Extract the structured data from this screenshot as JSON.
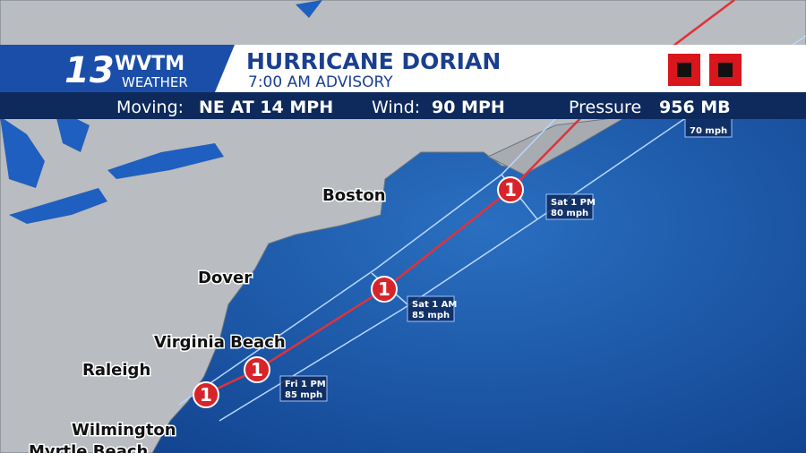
{
  "header": {
    "logo_number": "13",
    "logo_station": "WVTM",
    "logo_weather": "WEATHER",
    "title": "HURRICANE DORIAN",
    "subtitle": "7:00 AM ADVISORY"
  },
  "info_bar": {
    "moving_label": "Moving:",
    "moving_value": "NE AT 14 MPH",
    "wind_label": "Wind:",
    "wind_value": "90 MPH",
    "pressure_label": "Pressure",
    "pressure_value": "956 MB"
  },
  "cities": [
    {
      "label": "Boston"
    },
    {
      "label": "Dover"
    },
    {
      "label": "Virginia Beach"
    },
    {
      "label": "Raleigh"
    },
    {
      "label": "Wilmington"
    },
    {
      "label": "Myrtle Beach"
    }
  ],
  "track_points": [
    {
      "category": "1"
    },
    {
      "category": "1"
    },
    {
      "category": "1"
    },
    {
      "category": "1"
    }
  ],
  "forecast_labels": [
    {
      "time": "Fri 1 PM",
      "wind": "85 mph"
    },
    {
      "time": "Sat 1 AM",
      "wind": "85 mph"
    },
    {
      "time": "Sat 1 PM",
      "wind": "80 mph"
    },
    {
      "wind": "70 mph"
    }
  ]
}
